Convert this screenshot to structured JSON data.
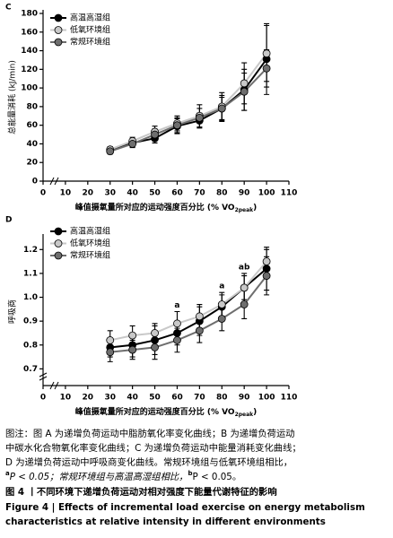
{
  "chart_data": [
    {
      "type": "line",
      "panel": "C",
      "ylabel": "总能量消耗 (kJ/min)",
      "xlabel": [
        "峰值摄氧量所对应的运动强度百分比 (% VO",
        "2peak",
        ")"
      ],
      "x": [
        30,
        40,
        50,
        60,
        70,
        80,
        90,
        100
      ],
      "xlim": [
        0,
        110
      ],
      "xticks": [
        0,
        10,
        20,
        30,
        40,
        50,
        60,
        70,
        80,
        90,
        100,
        110
      ],
      "ylim": [
        0,
        180
      ],
      "yticks": [
        0,
        20,
        40,
        60,
        80,
        100,
        120,
        140,
        160,
        180
      ],
      "legend": "upper left",
      "series": [
        {
          "name": "高温高湿组",
          "color": "#000000",
          "values": [
            33,
            41,
            46,
            59,
            65,
            78,
            98,
            131
          ],
          "errors": [
            3,
            4,
            5,
            8,
            8,
            12,
            22,
            38
          ]
        },
        {
          "name": "低氧环境组",
          "color": "#c8c8c8",
          "values": [
            34,
            43,
            53,
            62,
            70,
            80,
            105,
            137
          ],
          "errors": [
            3,
            4,
            6,
            8,
            12,
            15,
            22,
            30
          ]
        },
        {
          "name": "常规环境组",
          "color": "#6e6e6e",
          "values": [
            32,
            40,
            50,
            60,
            68,
            78,
            96,
            121
          ],
          "errors": [
            3,
            4,
            6,
            8,
            10,
            14,
            20,
            20
          ]
        }
      ]
    },
    {
      "type": "line",
      "panel": "D",
      "ylabel": "呼吸商",
      "xlabel": [
        "峰值摄氧量所对应的运动强度百分比 (% VO",
        "2peak",
        ")"
      ],
      "x": [
        30,
        40,
        50,
        60,
        70,
        80,
        90,
        100
      ],
      "xlim": [
        0,
        110
      ],
      "xticks": [
        0,
        10,
        20,
        30,
        40,
        50,
        60,
        70,
        80,
        90,
        100,
        110
      ],
      "ylim": [
        0.63,
        1.25
      ],
      "yticks": [
        0.7,
        0.8,
        0.9,
        {
          "value": 1,
          "label": "1.0"
        },
        1.1,
        1.2
      ],
      "legend": "upper left",
      "series": [
        {
          "name": "高温高湿组",
          "color": "#000000",
          "values": [
            0.79,
            0.8,
            0.82,
            0.85,
            0.9,
            0.96,
            1.04,
            1.12
          ],
          "errors": [
            0.04,
            0.05,
            0.06,
            0.05,
            0.06,
            0.05,
            0.06,
            0.09
          ]
        },
        {
          "name": "低氧环境组",
          "color": "#c8c8c8",
          "values": [
            0.82,
            0.84,
            0.85,
            0.89,
            0.92,
            0.97,
            1.04,
            1.15
          ],
          "errors": [
            0.04,
            0.04,
            0.04,
            0.05,
            0.05,
            0.05,
            0.05,
            0.05
          ]
        },
        {
          "name": "常规环境组",
          "color": "#6e6e6e",
          "values": [
            0.77,
            0.78,
            0.79,
            0.82,
            0.86,
            0.91,
            0.97,
            1.09
          ],
          "errors": [
            0.04,
            0.04,
            0.05,
            0.05,
            0.05,
            0.05,
            0.06,
            0.08
          ]
        }
      ],
      "annotations": [
        {
          "text": "a",
          "x": 60
        },
        {
          "text": "a",
          "x": 80
        },
        {
          "text": "ab",
          "x": 90
        }
      ]
    }
  ],
  "caption": {
    "note_lines": [
      "图注：图 A 为递增负荷运动中脂肪氧化率变化曲线；B 为递增负荷运动",
      "中碳水化合物氧化率变化曲线；C 为递增负荷运动中能量消耗变化曲线；",
      "D 为递增负荷运动中呼吸商变化曲线。常规环境组与低氧环境组相比，"
    ],
    "note_last": [
      "a",
      "P < 0.05；常规环境组与高温高湿组相比，",
      "b",
      "P < 0.05。"
    ],
    "title_cn": "图 4 丨不同环境下递增负荷运动对相对强度下能量代谢特征的影响",
    "title_en": [
      "Figure 4 | Effects of incremental load exercise on energy metabolism",
      "characteristics at relative intensity in different environments"
    ]
  }
}
